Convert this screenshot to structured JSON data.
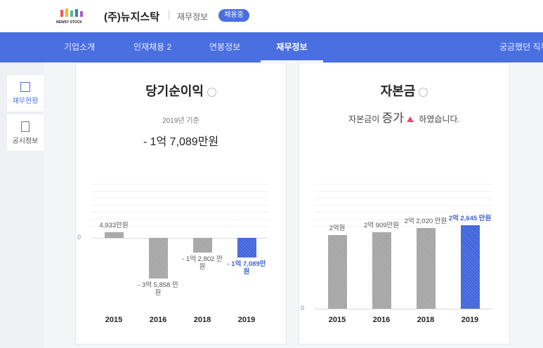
{
  "header": {
    "logo_text": "NEWSY STOCK",
    "company": "(주)뉴지스탁",
    "section": "재무정보",
    "badge": "채용중"
  },
  "nav": [
    "기업소개",
    "인재채용 2",
    "연봉정보",
    "재무정보",
    "궁금했던 직무"
  ],
  "sidebar": [
    "재무현황",
    "공시정보"
  ],
  "chart_data": [
    {
      "type": "bar",
      "title": "당기순이익",
      "subtitle": "2019년 기준",
      "annotation": "- 1억 7,089만원",
      "categories": [
        "2015",
        "2016",
        "2018",
        "2019"
      ],
      "values": [
        4933,
        -35858,
        -12802,
        -17089
      ],
      "value_labels": [
        "4,933만원",
        "- 3억 5,858 만원",
        "- 1억 2,802 만원",
        "- 1억 7,089만원"
      ],
      "colors": [
        "#a4a4a4",
        "#a4a4a4",
        "#a4a4a4",
        "#3e63dc"
      ],
      "ylim": [
        -62000,
        47000
      ],
      "yticks": [
        0
      ]
    },
    {
      "type": "bar",
      "title": "자본금",
      "subtitle": [
        "자본금이",
        "증가",
        "하였습니다."
      ],
      "categories": [
        "2015",
        "2016",
        "2018",
        "2019"
      ],
      "values": [
        20000,
        20909,
        22020,
        22645
      ],
      "value_labels": [
        "2억원",
        "2억 909만원",
        "2억 2,020 만원",
        "2억 2,645 만원"
      ],
      "colors": [
        "#a4a4a4",
        "#a4a4a4",
        "#a4a4a4",
        "#3e63dc"
      ],
      "ylim": [
        0,
        34000
      ],
      "yticks": [
        0
      ]
    }
  ]
}
